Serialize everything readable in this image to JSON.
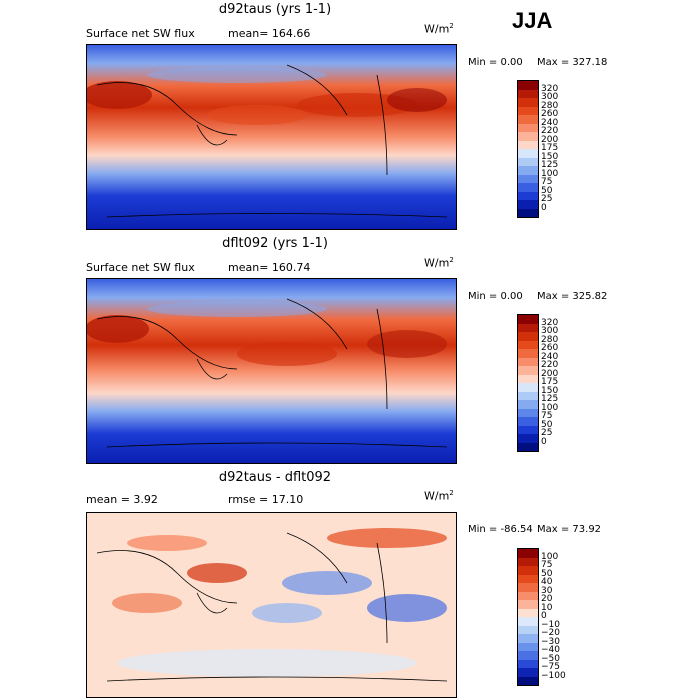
{
  "season": "JJA",
  "units": "W/m",
  "units_sup": "2",
  "panels": [
    {
      "title": "d92taus (yrs 1-1)",
      "left_label": "Surface net SW flux",
      "mean_label": "mean= 164.66",
      "min_label": "Min =    0.00",
      "max_label": "Max = 327.18"
    },
    {
      "title": "dflt092 (yrs 1-1)",
      "left_label": "Surface net SW flux",
      "mean_label": "mean= 160.74",
      "min_label": "Min =    0.00",
      "max_label": "Max = 325.82"
    },
    {
      "title": "d92taus - dflt092",
      "left_label": "mean =    3.92",
      "mean_label": "rmse =   17.10",
      "min_label": "Min = -86.54",
      "max_label": "Max =   73.92"
    }
  ],
  "chart_data": [
    {
      "type": "heatmap",
      "title": "d92taus (yrs 1-1)",
      "variable": "Surface net SW flux",
      "units": "W/m2",
      "mean": 164.66,
      "min": 0.0,
      "max": 327.18,
      "contour_levels": [
        0,
        25,
        50,
        75,
        100,
        125,
        150,
        175,
        200,
        220,
        240,
        260,
        280,
        300,
        320
      ]
    },
    {
      "type": "heatmap",
      "title": "dflt092 (yrs 1-1)",
      "variable": "Surface net SW flux",
      "units": "W/m2",
      "mean": 160.74,
      "min": 0.0,
      "max": 325.82,
      "contour_levels": [
        0,
        25,
        50,
        75,
        100,
        125,
        150,
        175,
        200,
        220,
        240,
        260,
        280,
        300,
        320
      ]
    },
    {
      "type": "heatmap",
      "title": "d92taus - dflt092",
      "units": "W/m2",
      "mean": 3.92,
      "rmse": 17.1,
      "min": -86.54,
      "max": 73.92,
      "contour_levels": [
        -100,
        -75,
        -50,
        -40,
        -30,
        -20,
        -10,
        0,
        10,
        20,
        30,
        40,
        50,
        75,
        100
      ]
    }
  ],
  "colorbars": {
    "flux_labels": [
      "320",
      "300",
      "280",
      "260",
      "240",
      "220",
      "200",
      "175",
      "150",
      "125",
      "100",
      "75",
      "50",
      "25",
      "0"
    ],
    "flux_colors": [
      "#8b0000",
      "#b41a06",
      "#d2300b",
      "#e44a1c",
      "#f06a40",
      "#f78d6a",
      "#fbb39a",
      "#fdd7c8",
      "#d7e6fb",
      "#aecbf5",
      "#86aaf0",
      "#5e86ea",
      "#3a5fe0",
      "#1c3cd4",
      "#0a1fb0",
      "#000e80"
    ],
    "diff_labels": [
      "100",
      "75",
      "50",
      "40",
      "30",
      "20",
      "10",
      "0",
      "−10",
      "−20",
      "−30",
      "−40",
      "−50",
      "−75",
      "−100"
    ],
    "diff_colors": [
      "#8b0000",
      "#b41a06",
      "#d2300b",
      "#e44a1c",
      "#f06a40",
      "#f78d6a",
      "#fbb39a",
      "#fde0cf",
      "#dde9fb",
      "#b8d1f6",
      "#92b3f1",
      "#6b92eb",
      "#4a70e3",
      "#2a49d6",
      "#1024b4",
      "#000e80"
    ]
  }
}
